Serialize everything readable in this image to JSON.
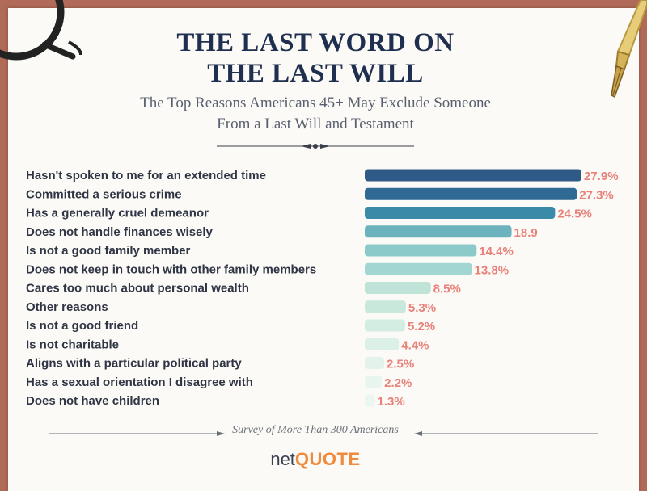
{
  "header": {
    "title_line1": "THE LAST WORD ON",
    "title_line2": "THE LAST WILL",
    "subtitle_line1": "The Top Reasons Americans 45+ May Exclude Someone",
    "subtitle_line2": "From a Last Will and Testament"
  },
  "footer": {
    "note": "Survey of More Than 300 Americans",
    "logo_net": "net",
    "logo_quote": "QUOTE"
  },
  "colors": {
    "label": "#2f3544",
    "value_label": "#e8817a",
    "bars": [
      "#2f5a87",
      "#2f6a94",
      "#3a8aa8",
      "#6db3bd",
      "#8ccaca",
      "#a2d6d2",
      "#bfe3d7",
      "#c8e8dc",
      "#d3ede3",
      "#dbf0e7",
      "#e3f3ec",
      "#e8f5ef",
      "#ecf6f1"
    ]
  },
  "chart_data": {
    "type": "bar",
    "orientation": "horizontal",
    "categories": [
      "Hasn't spoken to me for an extended time",
      "Committed a serious crime",
      "Has a generally cruel demeanor",
      "Does not handle finances wisely",
      "Is not a good family member",
      "Does not keep in touch with other family members",
      "Cares too much about personal wealth",
      "Other reasons",
      "Is not a good friend",
      "Is not charitable",
      "Aligns with a particular political party",
      "Has a sexual orientation I disagree with",
      "Does not have children"
    ],
    "values": [
      27.9,
      27.3,
      24.5,
      18.9,
      14.4,
      13.8,
      8.5,
      5.3,
      5.2,
      4.4,
      2.5,
      2.2,
      1.3
    ],
    "value_labels": [
      "27.9%",
      "27.3%",
      "24.5%",
      "18.9",
      "14.4%",
      "13.8%",
      "8.5%",
      "5.3%",
      "5.2%",
      "4.4%",
      "2.5%",
      "2.2%",
      "1.3%"
    ],
    "xlim": [
      0,
      27.9
    ],
    "grid": false,
    "legend": "none"
  }
}
